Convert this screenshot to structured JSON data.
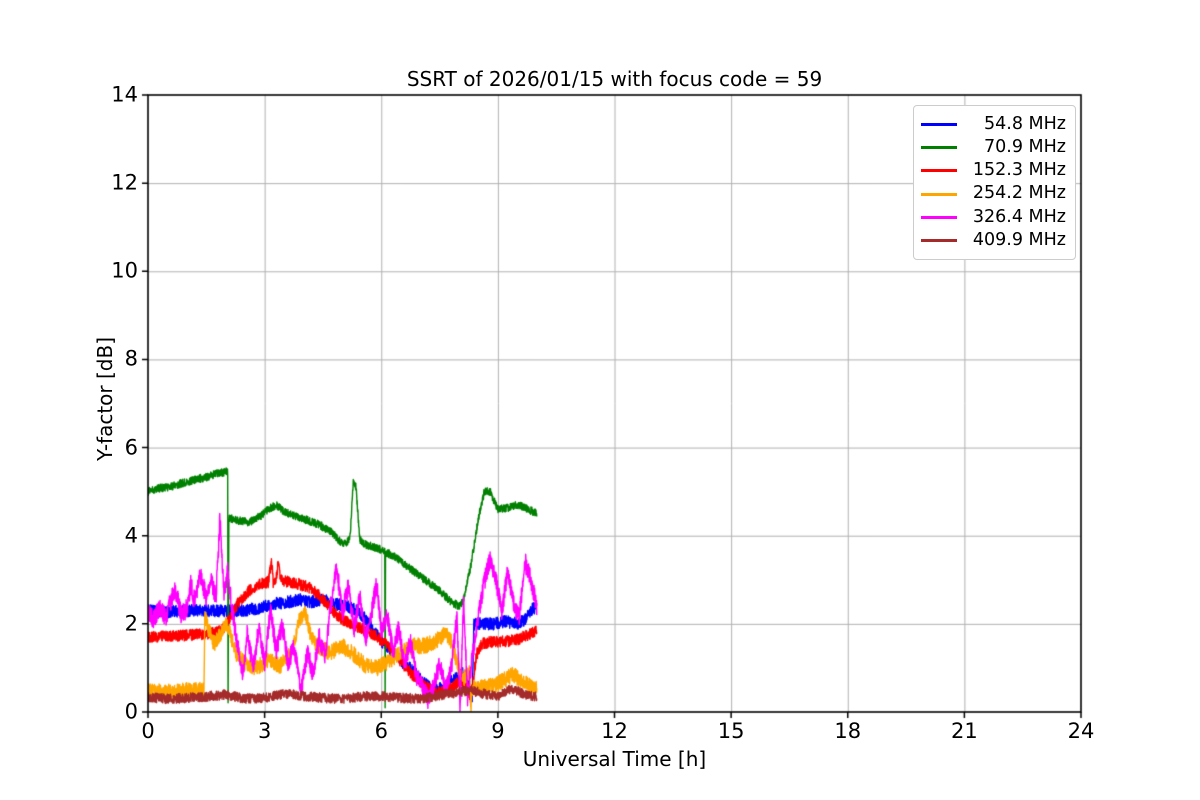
{
  "figure": {
    "title": "SSRT of 2026/01/15 with focus code = 59",
    "xlabel": "Universal Time [h]",
    "ylabel": "Y-factor [dB]"
  },
  "chart_data": {
    "type": "line",
    "title": "SSRT of 2026/01/15 with focus code = 59",
    "xlabel": "Universal Time [h]",
    "ylabel": "Y-factor [dB]",
    "xlim": [
      0,
      24
    ],
    "ylim": [
      0,
      14
    ],
    "x_ticks": [
      "0",
      "3",
      "6",
      "9",
      "12",
      "15",
      "18",
      "21",
      "24"
    ],
    "x_tick_values": [
      0,
      3,
      6,
      9,
      12,
      15,
      18,
      21,
      24
    ],
    "y_ticks": [
      "0",
      "2",
      "4",
      "6",
      "8",
      "10",
      "12",
      "14"
    ],
    "y_tick_values": [
      0,
      2,
      4,
      6,
      8,
      10,
      12,
      14
    ],
    "grid": true,
    "grid_color": "#b0b0b0",
    "frame_color": "#000000",
    "legend_position": "upper right",
    "data_time_span_hours": [
      0,
      10
    ],
    "series": [
      {
        "name": " 54.8 MHz",
        "color": "#0000ff",
        "noise": 0.14,
        "points": [
          [
            0,
            2.3
          ],
          [
            0.4,
            2.25
          ],
          [
            0.8,
            2.3
          ],
          [
            1.2,
            2.3
          ],
          [
            1.6,
            2.3
          ],
          [
            2.0,
            2.3
          ],
          [
            2.4,
            2.3
          ],
          [
            2.8,
            2.35
          ],
          [
            3.2,
            2.45
          ],
          [
            3.6,
            2.5
          ],
          [
            3.9,
            2.55
          ],
          [
            4.2,
            2.5
          ],
          [
            4.5,
            2.55
          ],
          [
            4.8,
            2.45
          ],
          [
            5.1,
            2.4
          ],
          [
            5.4,
            2.3
          ],
          [
            5.6,
            2.1
          ],
          [
            5.8,
            1.85
          ],
          [
            6.0,
            1.6
          ],
          [
            6.2,
            1.45
          ],
          [
            6.5,
            1.15
          ],
          [
            6.8,
            0.95
          ],
          [
            7.1,
            0.65
          ],
          [
            7.35,
            0.5
          ],
          [
            7.6,
            0.55
          ],
          [
            7.9,
            0.75
          ],
          [
            8.1,
            0.9
          ],
          [
            8.3,
            0.5
          ],
          [
            8.34,
            0.3
          ],
          [
            8.38,
            2.0
          ],
          [
            8.6,
            2.0
          ],
          [
            8.9,
            2.0
          ],
          [
            9.2,
            2.05
          ],
          [
            9.5,
            2.0
          ],
          [
            9.7,
            2.1
          ],
          [
            9.85,
            2.3
          ],
          [
            10,
            2.4
          ]
        ]
      },
      {
        "name": " 70.9 MHz",
        "color": "#008000",
        "noise": 0.09,
        "points": [
          [
            0,
            5.0
          ],
          [
            0.3,
            5.08
          ],
          [
            0.6,
            5.12
          ],
          [
            0.9,
            5.2
          ],
          [
            1.2,
            5.27
          ],
          [
            1.5,
            5.33
          ],
          [
            1.8,
            5.42
          ],
          [
            2.0,
            5.45
          ],
          [
            2.05,
            5.45
          ],
          [
            2.06,
            0.15
          ],
          [
            2.08,
            4.4
          ],
          [
            2.3,
            4.35
          ],
          [
            2.6,
            4.3
          ],
          [
            2.9,
            4.45
          ],
          [
            3.1,
            4.6
          ],
          [
            3.3,
            4.7
          ],
          [
            3.5,
            4.55
          ],
          [
            3.8,
            4.45
          ],
          [
            4.1,
            4.35
          ],
          [
            4.4,
            4.25
          ],
          [
            4.7,
            4.1
          ],
          [
            4.95,
            3.85
          ],
          [
            5.1,
            3.8
          ],
          [
            5.2,
            4.0
          ],
          [
            5.28,
            5.25
          ],
          [
            5.35,
            5.1
          ],
          [
            5.45,
            3.9
          ],
          [
            5.6,
            3.8
          ],
          [
            5.9,
            3.72
          ],
          [
            6.09,
            3.65
          ],
          [
            6.1,
            0.15
          ],
          [
            6.11,
            3.62
          ],
          [
            6.3,
            3.55
          ],
          [
            6.6,
            3.35
          ],
          [
            6.9,
            3.15
          ],
          [
            7.2,
            2.95
          ],
          [
            7.5,
            2.75
          ],
          [
            7.8,
            2.5
          ],
          [
            8.0,
            2.4
          ],
          [
            8.1,
            2.5
          ],
          [
            8.3,
            3.3
          ],
          [
            8.5,
            4.4
          ],
          [
            8.65,
            5.0
          ],
          [
            8.8,
            5.0
          ],
          [
            9.0,
            4.6
          ],
          [
            9.2,
            4.62
          ],
          [
            9.5,
            4.7
          ],
          [
            9.75,
            4.62
          ],
          [
            10,
            4.5
          ]
        ]
      },
      {
        "name": "152.3 MHz",
        "color": "#ff0000",
        "noise": 0.13,
        "points": [
          [
            0,
            1.7
          ],
          [
            0.4,
            1.72
          ],
          [
            0.8,
            1.73
          ],
          [
            1.2,
            1.75
          ],
          [
            1.6,
            1.78
          ],
          [
            1.9,
            1.85
          ],
          [
            2.1,
            2.1
          ],
          [
            2.3,
            2.45
          ],
          [
            2.6,
            2.75
          ],
          [
            2.9,
            2.9
          ],
          [
            3.1,
            2.95
          ],
          [
            3.18,
            3.45
          ],
          [
            3.22,
            2.95
          ],
          [
            3.3,
            3.0
          ],
          [
            3.35,
            3.45
          ],
          [
            3.4,
            3.0
          ],
          [
            3.6,
            2.95
          ],
          [
            3.9,
            2.9
          ],
          [
            4.2,
            2.8
          ],
          [
            4.5,
            2.55
          ],
          [
            4.8,
            2.25
          ],
          [
            5.0,
            2.1
          ],
          [
            5.3,
            1.95
          ],
          [
            5.6,
            1.85
          ],
          [
            5.9,
            1.7
          ],
          [
            6.2,
            1.5
          ],
          [
            6.5,
            1.15
          ],
          [
            6.8,
            0.85
          ],
          [
            7.1,
            0.6
          ],
          [
            7.4,
            0.45
          ],
          [
            7.6,
            0.45
          ],
          [
            7.8,
            0.55
          ],
          [
            8.0,
            0.7
          ],
          [
            8.2,
            0.65
          ],
          [
            8.3,
            0.3
          ],
          [
            8.45,
            1.3
          ],
          [
            8.6,
            1.55
          ],
          [
            8.9,
            1.6
          ],
          [
            9.2,
            1.6
          ],
          [
            9.5,
            1.65
          ],
          [
            9.8,
            1.75
          ],
          [
            10,
            1.85
          ]
        ]
      },
      {
        "name": "254.2 MHz",
        "color": "#ffa500",
        "noise": 0.18,
        "points": [
          [
            0,
            0.48
          ],
          [
            0.4,
            0.45
          ],
          [
            0.8,
            0.47
          ],
          [
            1.2,
            0.5
          ],
          [
            1.44,
            0.5
          ],
          [
            1.46,
            2.2
          ],
          [
            1.55,
            1.9
          ],
          [
            1.7,
            1.55
          ],
          [
            1.85,
            1.75
          ],
          [
            2.0,
            2.0
          ],
          [
            2.1,
            1.8
          ],
          [
            2.25,
            1.35
          ],
          [
            2.5,
            1.1
          ],
          [
            2.8,
            1.0
          ],
          [
            3.1,
            1.2
          ],
          [
            3.4,
            1.05
          ],
          [
            3.7,
            1.35
          ],
          [
            3.9,
            2.1
          ],
          [
            4.05,
            2.25
          ],
          [
            4.2,
            1.7
          ],
          [
            4.4,
            1.45
          ],
          [
            4.7,
            1.35
          ],
          [
            5.0,
            1.5
          ],
          [
            5.3,
            1.3
          ],
          [
            5.6,
            1.05
          ],
          [
            5.9,
            1.0
          ],
          [
            6.2,
            1.15
          ],
          [
            6.5,
            1.35
          ],
          [
            6.8,
            1.5
          ],
          [
            7.1,
            1.5
          ],
          [
            7.4,
            1.6
          ],
          [
            7.65,
            1.8
          ],
          [
            7.8,
            1.6
          ],
          [
            7.95,
            1.1
          ],
          [
            8.1,
            0.75
          ],
          [
            8.28,
            0.9
          ],
          [
            8.3,
            0.08
          ],
          [
            8.35,
            0.55
          ],
          [
            8.6,
            0.55
          ],
          [
            8.9,
            0.6
          ],
          [
            9.2,
            0.75
          ],
          [
            9.4,
            0.85
          ],
          [
            9.6,
            0.7
          ],
          [
            9.8,
            0.6
          ],
          [
            10,
            0.55
          ]
        ]
      },
      {
        "name": "326.4 MHz",
        "color": "#ff00ff",
        "noise": 0.22,
        "points": [
          [
            0,
            2.3
          ],
          [
            0.15,
            2.1
          ],
          [
            0.3,
            2.35
          ],
          [
            0.45,
            2.15
          ],
          [
            0.6,
            2.55
          ],
          [
            0.7,
            2.8
          ],
          [
            0.85,
            2.2
          ],
          [
            1.0,
            2.35
          ],
          [
            1.1,
            2.9
          ],
          [
            1.2,
            2.5
          ],
          [
            1.35,
            3.1
          ],
          [
            1.5,
            2.6
          ],
          [
            1.6,
            3.0
          ],
          [
            1.75,
            2.6
          ],
          [
            1.85,
            4.4
          ],
          [
            1.95,
            2.7
          ],
          [
            2.05,
            3.2
          ],
          [
            2.15,
            2.4
          ],
          [
            2.3,
            1.5
          ],
          [
            2.45,
            0.85
          ],
          [
            2.55,
            1.8
          ],
          [
            2.7,
            1.0
          ],
          [
            2.85,
            1.9
          ],
          [
            3.0,
            1.15
          ],
          [
            3.15,
            2.3
          ],
          [
            3.3,
            1.4
          ],
          [
            3.45,
            2.0
          ],
          [
            3.6,
            1.1
          ],
          [
            3.75,
            1.5
          ],
          [
            3.95,
            0.5
          ],
          [
            4.1,
            1.35
          ],
          [
            4.25,
            0.85
          ],
          [
            4.4,
            1.7
          ],
          [
            4.55,
            1.25
          ],
          [
            4.7,
            2.4
          ],
          [
            4.85,
            3.3
          ],
          [
            5.0,
            2.25
          ],
          [
            5.15,
            2.85
          ],
          [
            5.3,
            1.9
          ],
          [
            5.45,
            2.6
          ],
          [
            5.6,
            1.65
          ],
          [
            5.75,
            2.25
          ],
          [
            5.88,
            2.95
          ],
          [
            6.0,
            1.8
          ],
          [
            6.15,
            2.25
          ],
          [
            6.3,
            1.35
          ],
          [
            6.45,
            1.9
          ],
          [
            6.6,
            1.05
          ],
          [
            6.75,
            1.6
          ],
          [
            6.9,
            0.85
          ],
          [
            7.05,
            0.55
          ],
          [
            7.2,
            0.3
          ],
          [
            7.35,
            0.55
          ],
          [
            7.5,
            1.1
          ],
          [
            7.65,
            0.55
          ],
          [
            7.8,
            0.95
          ],
          [
            7.95,
            2.2
          ],
          [
            8.03,
            0.1
          ],
          [
            8.12,
            2.6
          ],
          [
            8.22,
            0.35
          ],
          [
            8.35,
            1.3
          ],
          [
            8.5,
            2.2
          ],
          [
            8.65,
            2.95
          ],
          [
            8.8,
            3.45
          ],
          [
            8.95,
            3.0
          ],
          [
            9.1,
            2.25
          ],
          [
            9.25,
            3.2
          ],
          [
            9.4,
            2.45
          ],
          [
            9.55,
            2.2
          ],
          [
            9.7,
            3.4
          ],
          [
            9.85,
            3.0
          ],
          [
            10,
            2.4
          ]
        ]
      },
      {
        "name": "409.9 MHz",
        "color": "#a52a2a",
        "noise": 0.11,
        "points": [
          [
            0,
            0.33
          ],
          [
            0.5,
            0.3
          ],
          [
            1.0,
            0.32
          ],
          [
            1.5,
            0.35
          ],
          [
            2.0,
            0.4
          ],
          [
            2.5,
            0.3
          ],
          [
            3.0,
            0.32
          ],
          [
            3.5,
            0.42
          ],
          [
            4.0,
            0.36
          ],
          [
            4.5,
            0.32
          ],
          [
            5.0,
            0.3
          ],
          [
            5.5,
            0.35
          ],
          [
            6.0,
            0.36
          ],
          [
            6.5,
            0.32
          ],
          [
            7.0,
            0.3
          ],
          [
            7.5,
            0.38
          ],
          [
            8.0,
            0.45
          ],
          [
            8.3,
            0.5
          ],
          [
            8.6,
            0.42
          ],
          [
            9.0,
            0.35
          ],
          [
            9.3,
            0.5
          ],
          [
            9.5,
            0.48
          ],
          [
            9.7,
            0.4
          ],
          [
            10,
            0.35
          ]
        ]
      }
    ]
  }
}
